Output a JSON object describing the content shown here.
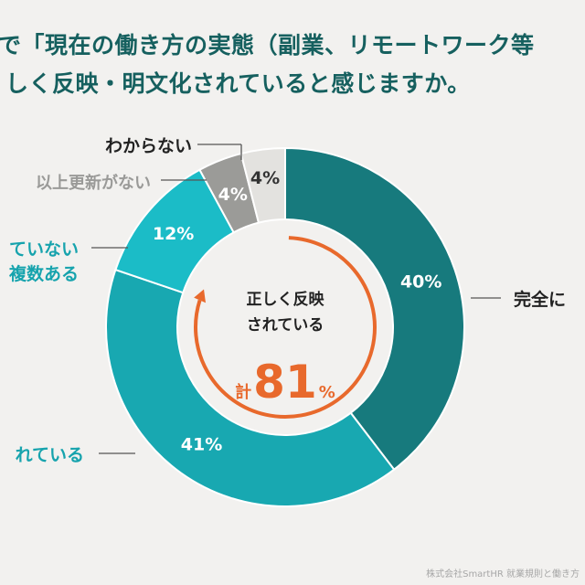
{
  "title": {
    "line1": "で「現在の働き方の実態（副業、リモートワーク等",
    "line2": "しく反映・明文化されていると感じますか。"
  },
  "colors": {
    "complete": "#177a7d",
    "mostly": "#18a8b1",
    "multiple": "#1bbcc7",
    "not_updated": "#9b9b98",
    "unknown": "#e3e2df",
    "accent": "#e8692c",
    "text_dark": "#222222",
    "label_teal": "#16a3ad",
    "label_gray": "#9a9a98"
  },
  "center": {
    "line1": "正しく反映",
    "line2": "されている",
    "prefix": "計",
    "value": "81",
    "unit": "%"
  },
  "credit": "株式会社SmartHR 就業規則と働き方",
  "chart_data": {
    "type": "pie",
    "title": "",
    "slices": [
      {
        "key": "complete",
        "label": "完全に",
        "value": 40,
        "value_label": "40%"
      },
      {
        "key": "mostly",
        "label": "れている",
        "value": 41,
        "value_label": "41%"
      },
      {
        "key": "multiple",
        "label_lines": [
          "ていない",
          "複数ある"
        ],
        "value": 12,
        "value_label": "12%"
      },
      {
        "key": "not_updated",
        "label": "以上更新がない",
        "value": 4,
        "value_label": "4%"
      },
      {
        "key": "unknown",
        "label": "わからない",
        "value": 4,
        "value_label": "4%"
      }
    ],
    "center_total": 81
  }
}
